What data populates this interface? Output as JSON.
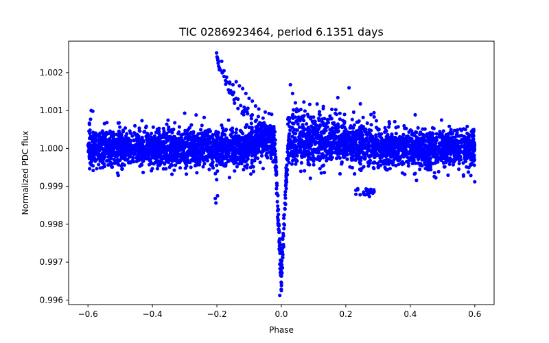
{
  "chart_data": {
    "type": "scatter",
    "title": "TIC 0286923464, period 6.1351 days",
    "xlabel": "Phase",
    "ylabel": "Normalized PDC flux",
    "xlim": [
      -0.66,
      0.66
    ],
    "ylim": [
      0.99588,
      1.00283
    ],
    "xticks": [
      -0.6,
      -0.4,
      -0.2,
      0.0,
      0.2,
      0.4,
      0.6
    ],
    "xtick_labels": [
      "−0.6",
      "−0.4",
      "−0.2",
      "0.0",
      "0.2",
      "0.4",
      "0.6"
    ],
    "yticks": [
      0.996,
      0.997,
      0.998,
      0.999,
      1.0,
      1.001,
      1.002
    ],
    "ytick_labels": [
      "0.996",
      "0.997",
      "0.998",
      "0.999",
      "1.000",
      "1.001",
      "1.002"
    ],
    "grid": false,
    "legend": "none",
    "marker_color": "#0000ff",
    "phase_range": [
      -0.6,
      0.6
    ],
    "baseline": {
      "flux": 1.0,
      "scatter": 0.00025
    },
    "transit": {
      "center": 0.0,
      "depth": 0.0035,
      "ingress_egress_width": 0.02
    },
    "features": [
      {
        "description": "bright excursion decaying from peak",
        "x_start": -0.2,
        "x_end": -0.03,
        "y_peak": 1.0025
      },
      {
        "description": "low dip cluster",
        "x_range": [
          0.23,
          0.29
        ],
        "y_approx": 0.99885
      },
      {
        "description": "post-transit elevated scatter",
        "x_range": [
          0.02,
          0.3
        ],
        "y_approx": 1.0006
      }
    ],
    "highlight_points": [
      {
        "x": -0.201,
        "y": 1.00252
      },
      {
        "x": -0.198,
        "y": 1.00238
      },
      {
        "x": -0.196,
        "y": 1.00225
      },
      {
        "x": -0.192,
        "y": 1.00212
      },
      {
        "x": -0.185,
        "y": 1.0023
      },
      {
        "x": -0.178,
        "y": 1.00205
      },
      {
        "x": -0.17,
        "y": 1.00188
      },
      {
        "x": -0.16,
        "y": 1.00175
      },
      {
        "x": -0.15,
        "y": 1.00168
      },
      {
        "x": -0.14,
        "y": 1.00176
      },
      {
        "x": -0.13,
        "y": 1.00165
      },
      {
        "x": -0.12,
        "y": 1.00158
      },
      {
        "x": -0.11,
        "y": 1.00145
      },
      {
        "x": -0.1,
        "y": 1.00132
      },
      {
        "x": -0.09,
        "y": 1.00125
      },
      {
        "x": -0.08,
        "y": 1.00112
      },
      {
        "x": -0.07,
        "y": 1.00104
      },
      {
        "x": -0.05,
        "y": 1.00096
      },
      {
        "x": -0.03,
        "y": 1.0009
      },
      {
        "x": -0.203,
        "y": 0.99856
      },
      {
        "x": -0.205,
        "y": 0.99868
      },
      {
        "x": -0.198,
        "y": 0.99875
      },
      {
        "x": 0.028,
        "y": 1.00168
      },
      {
        "x": 0.035,
        "y": 1.00145
      },
      {
        "x": 0.21,
        "y": 1.0016
      },
      {
        "x": -0.3,
        "y": 1.00093
      },
      {
        "x": -0.59,
        "y": 1.001
      },
      {
        "x": -0.585,
        "y": 1.00098
      },
      {
        "x": 0.6,
        "y": 0.99912
      },
      {
        "x": -0.005,
        "y": 0.99612
      },
      {
        "x": 0.0,
        "y": 0.99625
      },
      {
        "x": 0.255,
        "y": 0.99882
      },
      {
        "x": 0.265,
        "y": 0.99888
      }
    ]
  }
}
